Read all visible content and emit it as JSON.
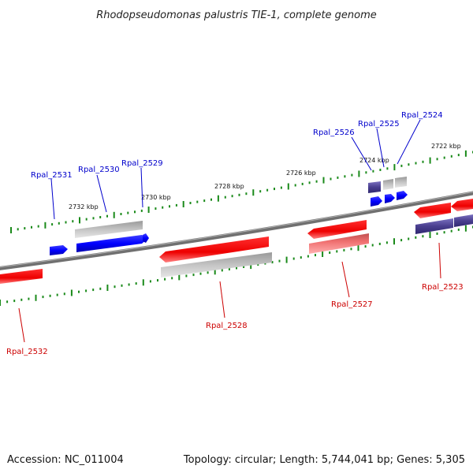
{
  "title": "Rhodopseudomonas palustris TIE-1, complete genome",
  "footer": {
    "accession": "Accession: NC_011004",
    "summary": "Topology: circular; Length: 5,744,041 bp; Genes: 5,305"
  },
  "colors": {
    "forward_gene": "#0000ff",
    "reverse_gene": "#ff0000",
    "reverse_rna": "#f08080",
    "grey_feature": "#bbbbbb",
    "purple_feature": "#4a3f8f",
    "tick": "#1a8a1a",
    "backbone": "#777777",
    "forward_label": "#0000cc",
    "reverse_label": "#cc0000"
  },
  "ticks": {
    "upper": [
      "2732 kbp",
      "2730 kbp",
      "2728 kbp",
      "2726 kbp",
      "2724 kbp",
      "2722 kbp"
    ]
  },
  "genes": {
    "forward": [
      "Rpal_2531",
      "Rpal_2530",
      "Rpal_2529",
      "Rpal_2526",
      "Rpal_2525",
      "Rpal_2524"
    ],
    "reverse": [
      "Rpal_2532",
      "Rpal_2528",
      "Rpal_2527",
      "Rpal_2523"
    ]
  }
}
